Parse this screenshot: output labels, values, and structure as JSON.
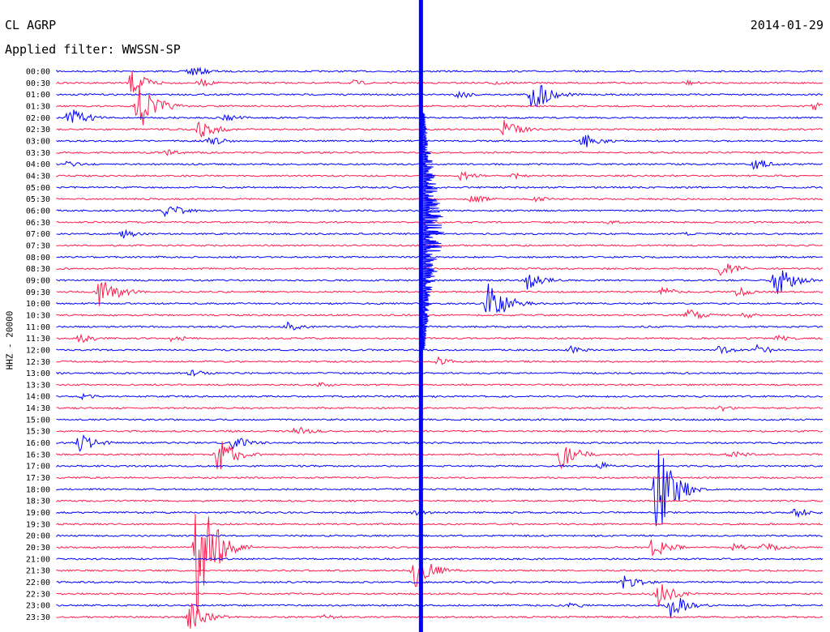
{
  "header": {
    "station": "CL AGRP",
    "date": "2014-01-29",
    "filter": "Applied filter: WWSSN-SP",
    "channel_label": "HHZ - 20000"
  },
  "chart_data": {
    "type": "line",
    "title": "",
    "xlabel": "",
    "ylabel": "HHZ - 20000",
    "grid": false,
    "legend": "none",
    "colors": {
      "even_row": "#0000ff",
      "odd_row": "#ff1a4b",
      "text": "#000000",
      "background": "#ffffff"
    },
    "rows": [
      "00:00",
      "00:30",
      "01:00",
      "01:30",
      "02:00",
      "02:30",
      "03:00",
      "03:30",
      "04:00",
      "04:30",
      "05:00",
      "05:30",
      "06:00",
      "06:30",
      "07:00",
      "07:30",
      "08:00",
      "08:30",
      "09:00",
      "09:30",
      "10:00",
      "10:30",
      "11:00",
      "11:30",
      "12:00",
      "12:30",
      "13:00",
      "13:30",
      "14:00",
      "14:30",
      "15:00",
      "15:30",
      "16:00",
      "16:30",
      "17:00",
      "17:30",
      "18:00",
      "18:30",
      "19:00",
      "19:30",
      "20:00",
      "20:30",
      "21:00",
      "21:30",
      "22:00",
      "22:30",
      "23:00",
      "23:30"
    ],
    "x_range_minutes": [
      0,
      30
    ],
    "clipped_band_minute": 14.25,
    "events": [
      {
        "row": "00:00",
        "minute": 5.2,
        "amp": 8
      },
      {
        "row": "00:30",
        "minute": 2.9,
        "amp": 16
      },
      {
        "row": "00:30",
        "minute": 5.6,
        "amp": 5
      },
      {
        "row": "00:30",
        "minute": 11.6,
        "amp": 4
      },
      {
        "row": "00:30",
        "minute": 17.2,
        "amp": 4
      },
      {
        "row": "00:30",
        "minute": 24.6,
        "amp": 4
      },
      {
        "row": "01:00",
        "minute": 18.6,
        "amp": 24
      },
      {
        "row": "01:00",
        "minute": 15.7,
        "amp": 6
      },
      {
        "row": "01:30",
        "minute": 3.2,
        "amp": 32
      },
      {
        "row": "01:30",
        "minute": 29.6,
        "amp": 6
      },
      {
        "row": "02:00",
        "minute": 0.5,
        "amp": 14
      },
      {
        "row": "02:00",
        "minute": 6.6,
        "amp": 5
      },
      {
        "row": "02:30",
        "minute": 5.6,
        "amp": 12
      },
      {
        "row": "02:30",
        "minute": 17.5,
        "amp": 12
      },
      {
        "row": "03:00",
        "minute": 5.9,
        "amp": 7
      },
      {
        "row": "03:00",
        "minute": 20.6,
        "amp": 10
      },
      {
        "row": "03:30",
        "minute": 4.3,
        "amp": 4
      },
      {
        "row": "04:00",
        "minute": 0.4,
        "amp": 4
      },
      {
        "row": "04:00",
        "minute": 27.3,
        "amp": 8
      },
      {
        "row": "04:30",
        "minute": 15.8,
        "amp": 6
      },
      {
        "row": "04:30",
        "minute": 17.9,
        "amp": 4
      },
      {
        "row": "05:30",
        "minute": 16.2,
        "amp": 6
      },
      {
        "row": "05:30",
        "minute": 18.7,
        "amp": 4
      },
      {
        "row": "06:00",
        "minute": 4.3,
        "amp": 10
      },
      {
        "row": "06:30",
        "minute": 21.6,
        "amp": 3
      },
      {
        "row": "07:00",
        "minute": 2.6,
        "amp": 6
      },
      {
        "row": "07:00",
        "minute": 24.5,
        "amp": 3
      },
      {
        "row": "08:30",
        "minute": 26.0,
        "amp": 10
      },
      {
        "row": "09:00",
        "minute": 18.4,
        "amp": 12
      },
      {
        "row": "09:00",
        "minute": 28.1,
        "amp": 22
      },
      {
        "row": "09:30",
        "minute": 1.7,
        "amp": 22
      },
      {
        "row": "09:30",
        "minute": 23.7,
        "amp": 6
      },
      {
        "row": "09:30",
        "minute": 26.5,
        "amp": 8
      },
      {
        "row": "10:00",
        "minute": 16.9,
        "amp": 30
      },
      {
        "row": "10:30",
        "minute": 24.7,
        "amp": 8
      },
      {
        "row": "10:30",
        "minute": 26.8,
        "amp": 5
      },
      {
        "row": "11:00",
        "minute": 9.0,
        "amp": 6
      },
      {
        "row": "11:30",
        "minute": 0.9,
        "amp": 6
      },
      {
        "row": "11:30",
        "minute": 4.5,
        "amp": 5
      },
      {
        "row": "11:30",
        "minute": 28.2,
        "amp": 5
      },
      {
        "row": "12:00",
        "minute": 20.1,
        "amp": 5
      },
      {
        "row": "12:00",
        "minute": 25.9,
        "amp": 6
      },
      {
        "row": "12:00",
        "minute": 27.3,
        "amp": 8
      },
      {
        "row": "12:30",
        "minute": 14.9,
        "amp": 6
      },
      {
        "row": "13:00",
        "minute": 5.2,
        "amp": 5
      },
      {
        "row": "13:30",
        "minute": 10.3,
        "amp": 4
      },
      {
        "row": "14:00",
        "minute": 1.0,
        "amp": 4
      },
      {
        "row": "14:30",
        "minute": 26.0,
        "amp": 4
      },
      {
        "row": "15:30",
        "minute": 9.3,
        "amp": 8
      },
      {
        "row": "16:00",
        "minute": 0.9,
        "amp": 12
      },
      {
        "row": "16:00",
        "minute": 6.9,
        "amp": 10
      },
      {
        "row": "16:30",
        "minute": 6.3,
        "amp": 26
      },
      {
        "row": "16:30",
        "minute": 19.7,
        "amp": 18
      },
      {
        "row": "16:30",
        "minute": 26.3,
        "amp": 6
      },
      {
        "row": "17:00",
        "minute": 21.2,
        "amp": 6
      },
      {
        "row": "18:00",
        "minute": 23.5,
        "amp": 60
      },
      {
        "row": "19:00",
        "minute": 28.9,
        "amp": 7
      },
      {
        "row": "19:00",
        "minute": 13.9,
        "amp": 5
      },
      {
        "row": "20:30",
        "minute": 5.5,
        "amp": 90
      },
      {
        "row": "20:30",
        "minute": 23.3,
        "amp": 14
      },
      {
        "row": "20:30",
        "minute": 26.4,
        "amp": 6
      },
      {
        "row": "20:30",
        "minute": 27.6,
        "amp": 8
      },
      {
        "row": "21:30",
        "minute": 14.0,
        "amp": 24
      },
      {
        "row": "22:00",
        "minute": 22.2,
        "amp": 10
      },
      {
        "row": "22:30",
        "minute": 23.4,
        "amp": 20
      },
      {
        "row": "23:00",
        "minute": 20.1,
        "amp": 4
      },
      {
        "row": "23:00",
        "minute": 24.0,
        "amp": 18
      },
      {
        "row": "23:30",
        "minute": 5.2,
        "amp": 18
      },
      {
        "row": "23:30",
        "minute": 10.5,
        "amp": 4
      }
    ]
  }
}
